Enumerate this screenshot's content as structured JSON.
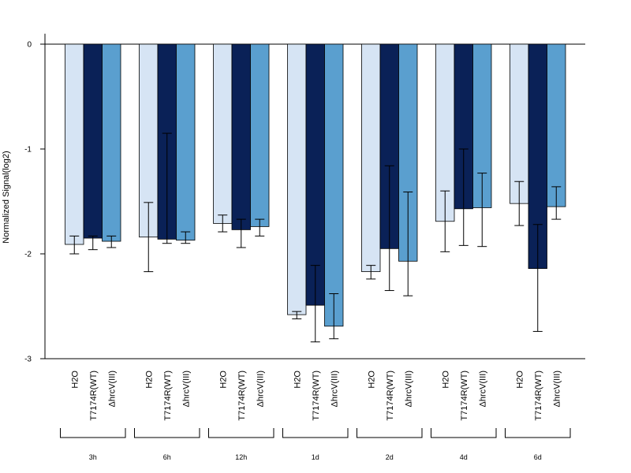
{
  "chart_data": {
    "type": "bar",
    "ylabel": "Normalized Signal(log2)",
    "ylim": [
      -3,
      0.1
    ],
    "yticks": [
      "0",
      "-1",
      "-2",
      "-3"
    ],
    "y_tick_values": [
      0,
      -1,
      -2,
      -3
    ],
    "groups": [
      "3h",
      "6h",
      "12h",
      "1d",
      "2d",
      "4d",
      "6d"
    ],
    "bar_labels": [
      "H2O",
      "T7174R(WT)",
      "ΔhrcV(III)"
    ],
    "series": [
      {
        "name": "H2O",
        "color": "#d6e4f4",
        "values": [
          -1.91,
          -1.84,
          -1.71,
          -2.58,
          -2.17,
          -1.69,
          -1.52
        ],
        "err_low": [
          -2.0,
          -2.17,
          -1.79,
          -2.62,
          -2.24,
          -1.98,
          -1.73
        ],
        "err_high": [
          -1.83,
          -1.51,
          -1.63,
          -2.55,
          -2.11,
          -1.4,
          -1.31
        ]
      },
      {
        "name": "T7174R(WT)",
        "color": "#0a2157",
        "values": [
          -1.85,
          -1.86,
          -1.77,
          -2.49,
          -1.95,
          -1.57,
          -2.14
        ],
        "err_low": [
          -1.96,
          -1.9,
          -1.94,
          -2.84,
          -2.35,
          -1.92,
          -2.74
        ],
        "err_high": [
          -1.83,
          -0.85,
          -1.67,
          -2.11,
          -1.16,
          -1.0,
          -1.72
        ]
      },
      {
        "name": "ΔhrcV(III)",
        "color": "#5a9fcf",
        "values": [
          -1.88,
          -1.87,
          -1.74,
          -2.69,
          -2.07,
          -1.56,
          -1.55
        ],
        "err_low": [
          -1.94,
          -1.9,
          -1.83,
          -2.81,
          -2.4,
          -1.93,
          -1.67
        ],
        "err_high": [
          -1.83,
          -1.79,
          -1.67,
          -2.38,
          -1.41,
          -1.23,
          -1.36
        ]
      }
    ]
  }
}
